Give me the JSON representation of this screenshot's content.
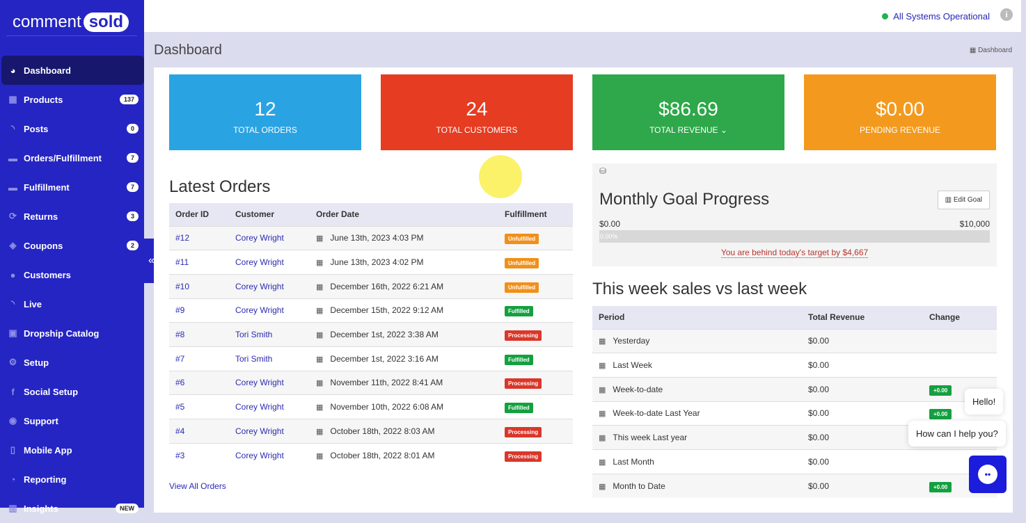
{
  "brand": {
    "part1": "comment",
    "part2": "sold"
  },
  "sidebar": {
    "items": [
      {
        "label": "Dashboard",
        "icon": "dashboard-icon",
        "glyph": "◕",
        "active": true
      },
      {
        "label": "Products",
        "icon": "grid-icon",
        "glyph": "▦",
        "badge": "137"
      },
      {
        "label": "Posts",
        "icon": "rss-icon",
        "glyph": "◝",
        "badge": "0"
      },
      {
        "label": "Orders/Fulfillment",
        "icon": "truck-icon",
        "glyph": "▬",
        "badge": "7"
      },
      {
        "label": "Fulfillment",
        "icon": "truck-icon",
        "glyph": "▬",
        "badge": "7"
      },
      {
        "label": "Returns",
        "icon": "refresh-icon",
        "glyph": "⟳",
        "badge": "3"
      },
      {
        "label": "Coupons",
        "icon": "ticket-icon",
        "glyph": "◈",
        "badge": "2"
      },
      {
        "label": "Customers",
        "icon": "user-icon",
        "glyph": "●"
      },
      {
        "label": "Live",
        "icon": "rss-icon",
        "glyph": "◝"
      },
      {
        "label": "Dropship Catalog",
        "icon": "box-icon",
        "glyph": "▣"
      },
      {
        "label": "Setup",
        "icon": "cogs-icon",
        "glyph": "⚙"
      },
      {
        "label": "Social Setup",
        "icon": "facebook-icon",
        "glyph": "f"
      },
      {
        "label": "Support",
        "icon": "comments-icon",
        "glyph": "◉"
      },
      {
        "label": "Mobile App",
        "icon": "mobile-icon",
        "glyph": "▯"
      },
      {
        "label": "Reporting",
        "icon": "pie-chart-icon",
        "glyph": "◔"
      },
      {
        "label": "Insights",
        "icon": "bar-chart-icon",
        "glyph": "▥",
        "badge": "NEW"
      }
    ],
    "collapse": "«"
  },
  "topbar": {
    "status": "All Systems Operational",
    "status_color": "#22b34a"
  },
  "page": {
    "title": "Dashboard",
    "breadcrumb": "Dashboard"
  },
  "stats": [
    {
      "value": "12",
      "label": "TOTAL ORDERS",
      "color": "#2aa3e3"
    },
    {
      "value": "24",
      "label": "TOTAL CUSTOMERS",
      "color": "#e53c22"
    },
    {
      "value": "$86.69",
      "label": "TOTAL REVENUE",
      "color": "#2ea84a"
    },
    {
      "value": "$0.00",
      "label": "PENDING REVENUE",
      "color": "#f39a1e"
    }
  ],
  "orders": {
    "title": "Latest Orders",
    "headers": [
      "Order ID",
      "Customer",
      "Order Date",
      "Fulfillment"
    ],
    "rows": [
      [
        "#12",
        "Corey Wright",
        "June 13th, 2023 4:03 PM",
        "Unfulfilled"
      ],
      [
        "#11",
        "Corey Wright",
        "June 13th, 2023 4:02 PM",
        "Unfulfilled"
      ],
      [
        "#10",
        "Corey Wright",
        "December 16th, 2022 6:21 AM",
        "Unfulfilled"
      ],
      [
        "#9",
        "Corey Wright",
        "December 15th, 2022 9:12 AM",
        "Fulfilled"
      ],
      [
        "#8",
        "Tori Smith",
        "December 1st, 2022 3:38 AM",
        "Processing"
      ],
      [
        "#7",
        "Tori Smith",
        "December 1st, 2022 3:16 AM",
        "Fulfilled"
      ],
      [
        "#6",
        "Corey Wright",
        "November 11th, 2022 8:41 AM",
        "Processing"
      ],
      [
        "#5",
        "Corey Wright",
        "November 10th, 2022 6:08 AM",
        "Fulfilled"
      ],
      [
        "#4",
        "Corey Wright",
        "October 18th, 2022 8:03 AM",
        "Processing"
      ],
      [
        "#3",
        "Corey Wright",
        "October 18th, 2022 8:01 AM",
        "Processing"
      ]
    ],
    "view_all": "View All Orders",
    "status_colors": {
      "Unfulfilled": "#f0901a",
      "Fulfilled": "#15a040",
      "Processing": "#d9372a"
    }
  },
  "goal": {
    "title": "Monthly Goal Progress",
    "edit": "Edit Goal",
    "min": "$0.00",
    "max": "$10,000",
    "progress": "0.00%",
    "behind": "You are behind today's target by $4,667"
  },
  "week": {
    "title": "This week sales vs last week",
    "headers": [
      "Period",
      "Total Revenue",
      "Change"
    ],
    "rows": [
      [
        "Yesterday",
        "$0.00",
        ""
      ],
      [
        "Last Week",
        "$0.00",
        ""
      ],
      [
        "Week-to-date",
        "$0.00",
        "+0.00"
      ],
      [
        "Week-to-date Last Year",
        "$0.00",
        "+0.00"
      ],
      [
        "This week Last year",
        "$0.00",
        ""
      ],
      [
        "Last Month",
        "$0.00",
        ""
      ],
      [
        "Month to Date",
        "$0.00",
        "+0.00"
      ]
    ]
  },
  "chat": {
    "hello": "Hello!",
    "help": "How can I help you?"
  }
}
